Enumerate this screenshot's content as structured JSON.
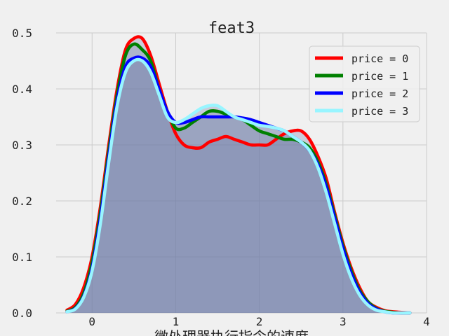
{
  "chart_data": {
    "type": "area",
    "title": "feat3",
    "xlabel": "微处理器执行指令的速度",
    "ylabel": "",
    "xlim": [
      -0.43,
      4.0
    ],
    "ylim": [
      0.0,
      0.5
    ],
    "xticks": [
      "0",
      "1",
      "2",
      "3",
      "4"
    ],
    "yticks": [
      "0.0",
      "0.1",
      "0.2",
      "0.3",
      "0.4",
      "0.5"
    ],
    "grid": true,
    "legend_position": "top-right",
    "x": [
      -0.3,
      -0.2,
      -0.1,
      0.0,
      0.1,
      0.2,
      0.3,
      0.4,
      0.5,
      0.6,
      0.7,
      0.8,
      0.9,
      1.0,
      1.1,
      1.2,
      1.3,
      1.4,
      1.5,
      1.6,
      1.7,
      1.8,
      1.9,
      2.0,
      2.1,
      2.2,
      2.3,
      2.4,
      2.5,
      2.6,
      2.7,
      2.8,
      2.9,
      3.0,
      3.1,
      3.2,
      3.3,
      3.4,
      3.5,
      3.6,
      3.7,
      3.8
    ],
    "series": [
      {
        "name": "price = 0",
        "color": "#ff0000",
        "values": [
          0.005,
          0.015,
          0.045,
          0.1,
          0.19,
          0.3,
          0.4,
          0.47,
          0.49,
          0.49,
          0.46,
          0.41,
          0.36,
          0.32,
          0.3,
          0.295,
          0.295,
          0.305,
          0.31,
          0.315,
          0.31,
          0.305,
          0.3,
          0.3,
          0.3,
          0.31,
          0.32,
          0.325,
          0.325,
          0.31,
          0.28,
          0.24,
          0.18,
          0.125,
          0.08,
          0.045,
          0.02,
          0.01,
          0.004,
          0.002,
          0.001,
          0.0
        ]
      },
      {
        "name": "price = 1",
        "color": "#008000",
        "values": [
          0.003,
          0.01,
          0.035,
          0.09,
          0.18,
          0.29,
          0.39,
          0.46,
          0.48,
          0.47,
          0.45,
          0.4,
          0.36,
          0.33,
          0.33,
          0.34,
          0.35,
          0.36,
          0.36,
          0.355,
          0.35,
          0.345,
          0.335,
          0.325,
          0.32,
          0.315,
          0.31,
          0.31,
          0.305,
          0.295,
          0.27,
          0.23,
          0.175,
          0.12,
          0.075,
          0.04,
          0.02,
          0.008,
          0.003,
          0.001,
          0.0,
          0.0
        ]
      },
      {
        "name": "price = 2",
        "color": "#0000ff",
        "values": [
          0.002,
          0.008,
          0.03,
          0.08,
          0.17,
          0.28,
          0.38,
          0.44,
          0.455,
          0.455,
          0.44,
          0.4,
          0.36,
          0.34,
          0.34,
          0.345,
          0.35,
          0.35,
          0.35,
          0.35,
          0.35,
          0.348,
          0.345,
          0.34,
          0.335,
          0.33,
          0.325,
          0.315,
          0.305,
          0.29,
          0.265,
          0.225,
          0.17,
          0.115,
          0.07,
          0.037,
          0.017,
          0.007,
          0.002,
          0.0,
          0.0,
          0.0
        ]
      },
      {
        "name": "price = 3",
        "color": "#98f5ff",
        "values": [
          0.002,
          0.007,
          0.028,
          0.075,
          0.16,
          0.27,
          0.37,
          0.43,
          0.45,
          0.45,
          0.43,
          0.39,
          0.35,
          0.34,
          0.345,
          0.355,
          0.365,
          0.37,
          0.37,
          0.36,
          0.35,
          0.345,
          0.34,
          0.335,
          0.333,
          0.33,
          0.325,
          0.315,
          0.305,
          0.29,
          0.26,
          0.215,
          0.16,
          0.105,
          0.062,
          0.032,
          0.014,
          0.005,
          0.002,
          0.0,
          0.0,
          0.0
        ]
      }
    ]
  }
}
